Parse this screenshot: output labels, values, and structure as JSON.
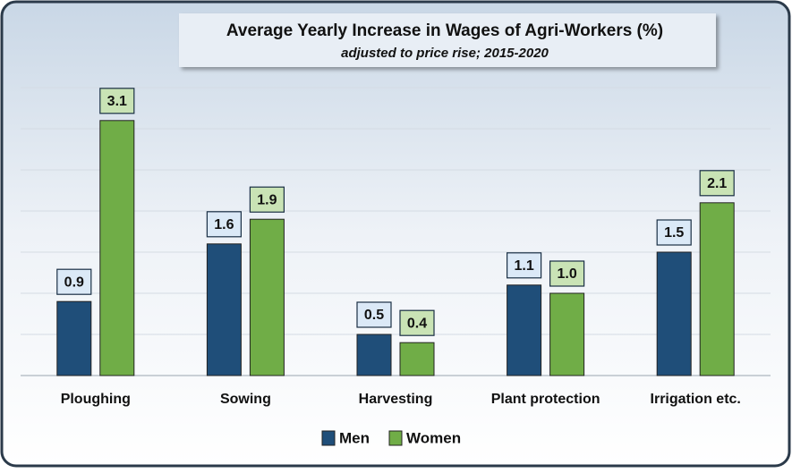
{
  "chart_data": {
    "type": "bar",
    "title": "Average Yearly Increase in Wages of Agri-Workers (%)",
    "subtitle": "adjusted to price rise; 2015-2020",
    "categories": [
      "Ploughing",
      "Sowing",
      "Harvesting",
      "Plant protection",
      "Irrigation etc."
    ],
    "series": [
      {
        "name": "Men",
        "color": "#1f4e79",
        "label_fill": "#dbe9f7",
        "values": [
          0.9,
          1.6,
          0.5,
          1.1,
          1.5
        ],
        "value_labels": [
          "0.9",
          "1.6",
          "0.5",
          "1.1",
          "1.5"
        ]
      },
      {
        "name": "Women",
        "color": "#70ad47",
        "label_fill": "#c9e3b5",
        "values": [
          3.1,
          1.9,
          0.4,
          1.0,
          2.1
        ],
        "value_labels": [
          "3.1",
          "1.9",
          "0.4",
          "1.0",
          "2.1"
        ]
      }
    ],
    "ylim": [
      0,
      3.5
    ],
    "yticks": [
      0,
      0.5,
      1,
      1.5,
      2,
      2.5,
      3,
      3.5
    ],
    "grid": true,
    "legend": "bottom"
  }
}
